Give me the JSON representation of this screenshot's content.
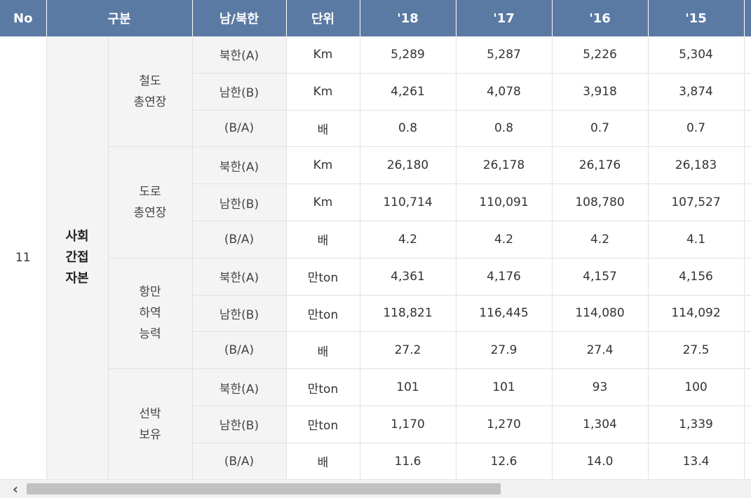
{
  "headers": {
    "no": "No",
    "category": "구분",
    "side": "남/북한",
    "unit": "단위",
    "years": [
      "'18",
      "'17",
      "'16",
      "'15"
    ]
  },
  "no_value": "11",
  "major_category": [
    "사회",
    "간접",
    "자본"
  ],
  "groups": [
    {
      "name_lines": [
        "철도",
        "총연장"
      ],
      "rows": [
        {
          "side": "북한(A)",
          "unit": "Km",
          "values": [
            "5,289",
            "5,287",
            "5,226",
            "5,304"
          ]
        },
        {
          "side": "남한(B)",
          "unit": "Km",
          "values": [
            "4,261",
            "4,078",
            "3,918",
            "3,874"
          ]
        },
        {
          "side": "(B/A)",
          "unit": "배",
          "values": [
            "0.8",
            "0.8",
            "0.7",
            "0.7"
          ]
        }
      ]
    },
    {
      "name_lines": [
        "도로",
        "총연장"
      ],
      "rows": [
        {
          "side": "북한(A)",
          "unit": "Km",
          "values": [
            "26,180",
            "26,178",
            "26,176",
            "26,183"
          ]
        },
        {
          "side": "남한(B)",
          "unit": "Km",
          "values": [
            "110,714",
            "110,091",
            "108,780",
            "107,527"
          ]
        },
        {
          "side": "(B/A)",
          "unit": "배",
          "values": [
            "4.2",
            "4.2",
            "4.2",
            "4.1"
          ]
        }
      ]
    },
    {
      "name_lines": [
        "항만",
        "하역",
        "능력"
      ],
      "rows": [
        {
          "side": "북한(A)",
          "unit": "만ton",
          "values": [
            "4,361",
            "4,176",
            "4,157",
            "4,156"
          ]
        },
        {
          "side": "남한(B)",
          "unit": "만ton",
          "values": [
            "118,821",
            "116,445",
            "114,080",
            "114,092"
          ]
        },
        {
          "side": "(B/A)",
          "unit": "배",
          "values": [
            "27.2",
            "27.9",
            "27.4",
            "27.5"
          ]
        }
      ]
    },
    {
      "name_lines": [
        "선박",
        "보유"
      ],
      "rows": [
        {
          "side": "북한(A)",
          "unit": "만ton",
          "values": [
            "101",
            "101",
            "93",
            "100"
          ]
        },
        {
          "side": "남한(B)",
          "unit": "만ton",
          "values": [
            "1,170",
            "1,270",
            "1,304",
            "1,339"
          ]
        },
        {
          "side": "(B/A)",
          "unit": "배",
          "values": [
            "11.6",
            "12.6",
            "14.0",
            "13.4"
          ]
        }
      ]
    }
  ],
  "scrollbar": {
    "left_arrow_icon": "chevron-left-icon",
    "thumb_colour": "#c1c1c1"
  },
  "colors": {
    "header_bg": "#5b7aa3",
    "category_bg": "#f4f4f4"
  }
}
